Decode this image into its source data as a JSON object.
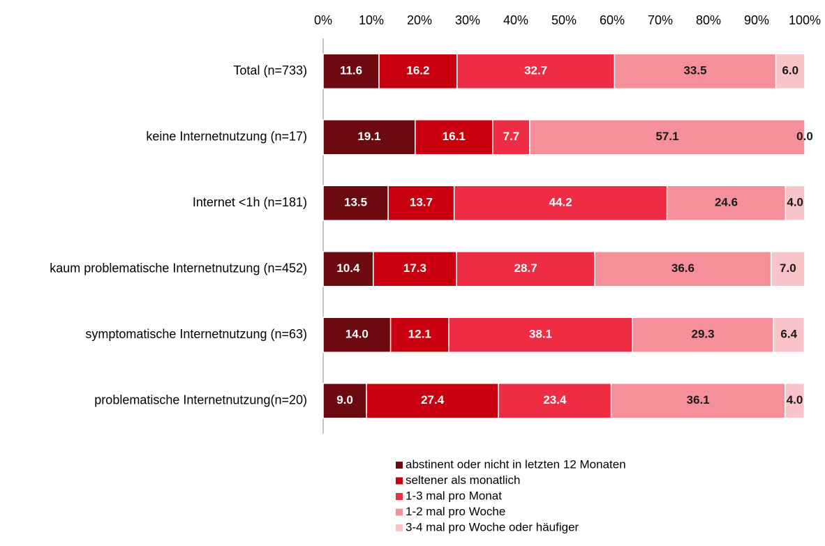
{
  "chart_data": {
    "type": "stacked_barh",
    "categories": [
      "Total (n=733)",
      "keine Internetnutzung (n=17)",
      "Internet <1h (n=181)",
      "kaum problematische Internetnutzung (n=452)",
      "symptomatische Internetnutzung (n=63)",
      "problematische Internetnutzung(n=20)"
    ],
    "series": [
      {
        "name": "abstinent oder nicht in letzten 12 Monaten",
        "color": "#6d0a10",
        "label_color": "#ffffff",
        "values": [
          11.6,
          19.1,
          13.5,
          10.4,
          14.0,
          9.0
        ],
        "value_labels": [
          "11.6",
          "19.1",
          "13.5",
          "10.4",
          "14.0",
          "9.0"
        ]
      },
      {
        "name": "seltener als monatlich",
        "color": "#c8000f",
        "label_color": "#ffffff",
        "values": [
          16.2,
          16.1,
          13.7,
          17.3,
          12.1,
          27.4
        ],
        "value_labels": [
          "16.2",
          "16.1",
          "13.7",
          "17.3",
          "12.1",
          "27.4"
        ]
      },
      {
        "name": "1-3 mal pro Monat",
        "color": "#ee2d45",
        "label_color": "#ffffff",
        "values": [
          32.7,
          7.7,
          44.2,
          28.7,
          38.1,
          23.4
        ],
        "value_labels": [
          "32.7",
          "7.7",
          "44.2",
          "28.7",
          "38.1",
          "23.4"
        ]
      },
      {
        "name": "1-2 mal pro Woche",
        "color": "#f5909a",
        "label_color": "#1a1a1a",
        "values": [
          33.5,
          57.1,
          24.6,
          36.6,
          29.3,
          36.1
        ],
        "value_labels": [
          "33.5",
          "57.1",
          "24.6",
          "36.6",
          "29.3",
          "36.1"
        ]
      },
      {
        "name": "3-4 mal pro Woche oder häufiger",
        "color": "#f9c4c8",
        "label_color": "#1a1a1a",
        "values": [
          6.0,
          0.0,
          4.0,
          7.0,
          6.4,
          4.0
        ],
        "value_labels": [
          "6.0",
          "0.0",
          "4.0",
          "7.0",
          "6.4",
          "4.0"
        ]
      }
    ],
    "xlim": [
      0,
      100
    ],
    "xticks": [
      {
        "value": 0,
        "label": "0%"
      },
      {
        "value": 10,
        "label": "10%"
      },
      {
        "value": 20,
        "label": "20%"
      },
      {
        "value": 30,
        "label": "30%"
      },
      {
        "value": 40,
        "label": "40%"
      },
      {
        "value": 50,
        "label": "50%"
      },
      {
        "value": 60,
        "label": "60%"
      },
      {
        "value": 70,
        "label": "70%"
      },
      {
        "value": 80,
        "label": "80%"
      },
      {
        "value": 90,
        "label": "90%"
      },
      {
        "value": 100,
        "label": "100%"
      }
    ]
  }
}
